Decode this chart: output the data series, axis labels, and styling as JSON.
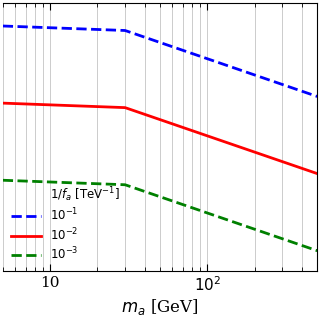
{
  "xlabel": "$m_a$ [GeV]",
  "xlim": [
    5,
    500
  ],
  "coupling_1": 0.1,
  "coupling_2": 0.01,
  "coupling_3": 0.001,
  "line_color_1": "blue",
  "line_color_2": "red",
  "line_color_3": "green",
  "line_style_1": "--",
  "line_style_2": "-",
  "line_style_3": "--",
  "line_width": 2.0,
  "background_color": "#ffffff",
  "grid_color": "#cccccc",
  "legend_header": "$1/f_a\\ [\\mathrm{TeV}^{-1}]$",
  "legend_2": "$10^{-1}$",
  "legend_3": "$10^{-2}$",
  "legend_4": "$10^{-3}$",
  "x_ticks": [
    10,
    100
  ],
  "x_tick_labels": [
    "10",
    "$10^2$"
  ],
  "figsize": [
    3.2,
    3.2
  ],
  "dpi": 100
}
